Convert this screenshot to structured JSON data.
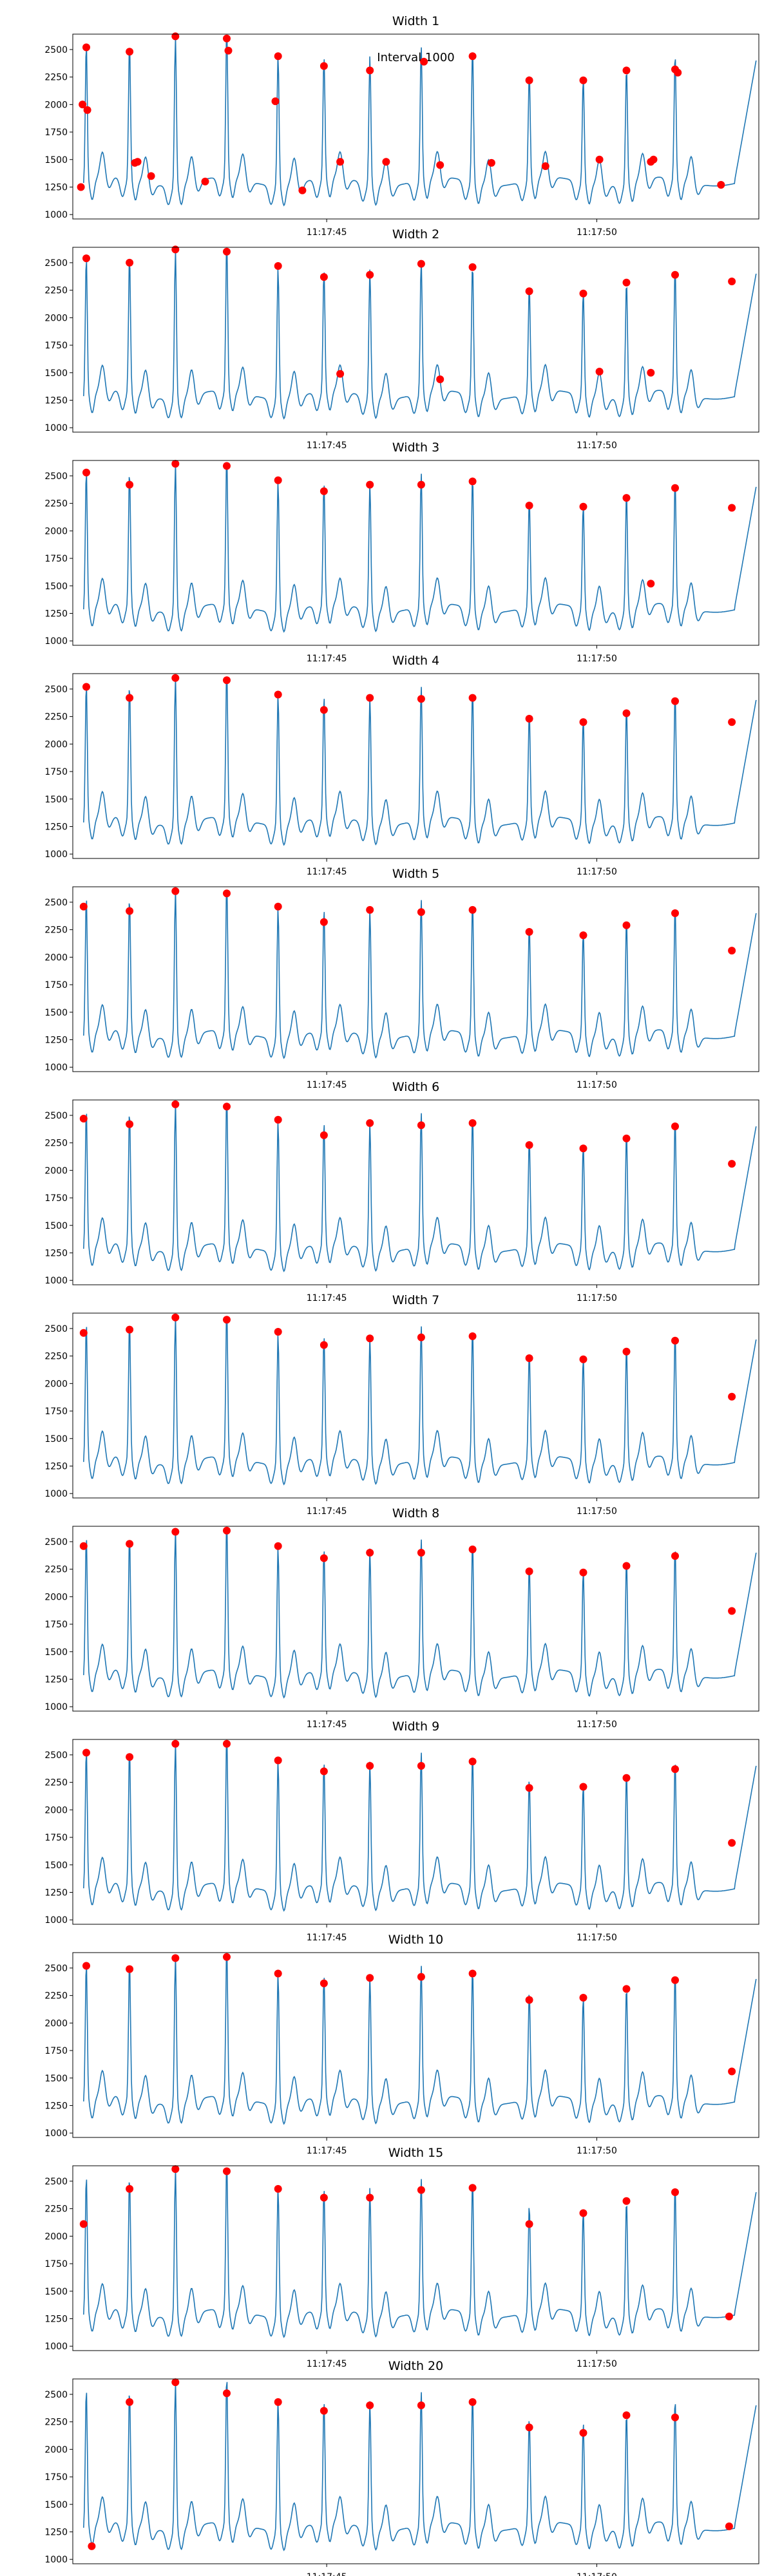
{
  "figure": {
    "annotation": "Interval 1000",
    "x_tick_labels": [
      "11:17:45",
      "11:17:50"
    ],
    "y_tick_labels": [
      "1000",
      "1250",
      "1500",
      "1750",
      "2000",
      "2250",
      "2500"
    ],
    "signal_color": "#1f77b4",
    "peak_color": "#ff0000",
    "axes_color": "#000000",
    "background": "#ffffff"
  },
  "chart_data": [
    {
      "type": "line",
      "title": "Width 1",
      "annotation": "Interval 1000",
      "xlabel": "",
      "ylabel": "",
      "x_unit": "seconds after 11:17:40",
      "xlim": [
        40.3,
        53.0
      ],
      "ylim": [
        960,
        2640
      ],
      "grid": false,
      "peaks": [
        [
          40.45,
          1250
        ],
        [
          40.48,
          2000
        ],
        [
          40.55,
          2520
        ],
        [
          40.57,
          1950
        ],
        [
          41.35,
          2480
        ],
        [
          41.45,
          1470
        ],
        [
          41.5,
          1480
        ],
        [
          41.75,
          1350
        ],
        [
          42.2,
          2620
        ],
        [
          42.75,
          1300
        ],
        [
          43.15,
          2600
        ],
        [
          43.18,
          2490
        ],
        [
          44.05,
          2030
        ],
        [
          44.1,
          2440
        ],
        [
          44.55,
          1220
        ],
        [
          44.95,
          2350
        ],
        [
          45.25,
          1480
        ],
        [
          45.8,
          2310
        ],
        [
          46.1,
          1480
        ],
        [
          46.8,
          2390
        ],
        [
          47.1,
          1450
        ],
        [
          47.7,
          2440
        ],
        [
          48.05,
          1470
        ],
        [
          48.75,
          2220
        ],
        [
          49.05,
          1440
        ],
        [
          49.75,
          2220
        ],
        [
          50.05,
          1500
        ],
        [
          50.55,
          2310
        ],
        [
          51.0,
          1480
        ],
        [
          51.05,
          1500
        ],
        [
          51.45,
          2320
        ],
        [
          51.5,
          2290
        ],
        [
          52.3,
          1270
        ]
      ]
    },
    {
      "type": "line",
      "title": "Width 2",
      "xlabel": "",
      "ylabel": "",
      "x_unit": "seconds after 11:17:40",
      "xlim": [
        40.3,
        53.0
      ],
      "ylim": [
        960,
        2640
      ],
      "grid": false,
      "peaks": [
        [
          40.55,
          2540
        ],
        [
          41.35,
          2500
        ],
        [
          42.2,
          2620
        ],
        [
          43.15,
          2600
        ],
        [
          44.1,
          2470
        ],
        [
          44.95,
          2370
        ],
        [
          45.25,
          1490
        ],
        [
          45.8,
          2390
        ],
        [
          46.75,
          2490
        ],
        [
          47.1,
          1440
        ],
        [
          47.7,
          2460
        ],
        [
          48.75,
          2240
        ],
        [
          49.75,
          2220
        ],
        [
          50.05,
          1510
        ],
        [
          50.55,
          2320
        ],
        [
          51.0,
          1500
        ],
        [
          51.45,
          2390
        ],
        [
          52.5,
          2330
        ]
      ]
    },
    {
      "type": "line",
      "title": "Width 3",
      "xlabel": "",
      "ylabel": "",
      "x_unit": "seconds after 11:17:40",
      "xlim": [
        40.3,
        53.0
      ],
      "ylim": [
        960,
        2640
      ],
      "grid": false,
      "peaks": [
        [
          40.55,
          2530
        ],
        [
          41.35,
          2420
        ],
        [
          42.2,
          2610
        ],
        [
          43.15,
          2590
        ],
        [
          44.1,
          2460
        ],
        [
          44.95,
          2360
        ],
        [
          45.8,
          2420
        ],
        [
          46.75,
          2420
        ],
        [
          47.7,
          2450
        ],
        [
          48.75,
          2230
        ],
        [
          49.75,
          2220
        ],
        [
          50.55,
          2300
        ],
        [
          51.0,
          1520
        ],
        [
          51.45,
          2390
        ],
        [
          52.5,
          2210
        ]
      ]
    },
    {
      "type": "line",
      "title": "Width 4",
      "xlabel": "",
      "ylabel": "",
      "x_unit": "seconds after 11:17:40",
      "xlim": [
        40.3,
        53.0
      ],
      "ylim": [
        960,
        2640
      ],
      "grid": false,
      "peaks": [
        [
          40.55,
          2520
        ],
        [
          41.35,
          2420
        ],
        [
          42.2,
          2600
        ],
        [
          43.15,
          2580
        ],
        [
          44.1,
          2450
        ],
        [
          44.95,
          2310
        ],
        [
          45.8,
          2420
        ],
        [
          46.75,
          2410
        ],
        [
          47.7,
          2420
        ],
        [
          48.75,
          2230
        ],
        [
          49.75,
          2200
        ],
        [
          50.55,
          2280
        ],
        [
          51.45,
          2390
        ],
        [
          52.5,
          2200
        ]
      ]
    },
    {
      "type": "line",
      "title": "Width 5",
      "xlabel": "",
      "ylabel": "",
      "x_unit": "seconds after 11:17:40",
      "xlim": [
        40.3,
        53.0
      ],
      "ylim": [
        960,
        2640
      ],
      "grid": false,
      "peaks": [
        [
          40.5,
          2460
        ],
        [
          41.35,
          2420
        ],
        [
          42.2,
          2600
        ],
        [
          43.15,
          2580
        ],
        [
          44.1,
          2460
        ],
        [
          44.95,
          2320
        ],
        [
          45.8,
          2430
        ],
        [
          46.75,
          2410
        ],
        [
          47.7,
          2430
        ],
        [
          48.75,
          2230
        ],
        [
          49.75,
          2200
        ],
        [
          50.55,
          2290
        ],
        [
          51.45,
          2400
        ],
        [
          52.5,
          2060
        ]
      ]
    },
    {
      "type": "line",
      "title": "Width 6",
      "xlabel": "",
      "ylabel": "",
      "x_unit": "seconds after 11:17:40",
      "xlim": [
        40.3,
        53.0
      ],
      "ylim": [
        960,
        2640
      ],
      "grid": false,
      "peaks": [
        [
          40.5,
          2470
        ],
        [
          41.35,
          2420
        ],
        [
          42.2,
          2600
        ],
        [
          43.15,
          2580
        ],
        [
          44.1,
          2460
        ],
        [
          44.95,
          2320
        ],
        [
          45.8,
          2430
        ],
        [
          46.75,
          2410
        ],
        [
          47.7,
          2430
        ],
        [
          48.75,
          2230
        ],
        [
          49.75,
          2200
        ],
        [
          50.55,
          2290
        ],
        [
          51.45,
          2400
        ],
        [
          52.5,
          2060
        ]
      ]
    },
    {
      "type": "line",
      "title": "Width 7",
      "xlabel": "",
      "ylabel": "",
      "x_unit": "seconds after 11:17:40",
      "xlim": [
        40.3,
        53.0
      ],
      "ylim": [
        960,
        2640
      ],
      "grid": false,
      "peaks": [
        [
          40.5,
          2460
        ],
        [
          41.35,
          2490
        ],
        [
          42.2,
          2600
        ],
        [
          43.15,
          2580
        ],
        [
          44.1,
          2470
        ],
        [
          44.95,
          2350
        ],
        [
          45.8,
          2410
        ],
        [
          46.75,
          2420
        ],
        [
          47.7,
          2430
        ],
        [
          48.75,
          2230
        ],
        [
          49.75,
          2220
        ],
        [
          50.55,
          2290
        ],
        [
          51.45,
          2390
        ],
        [
          52.5,
          1880
        ]
      ]
    },
    {
      "type": "line",
      "title": "Width 8",
      "xlabel": "",
      "ylabel": "",
      "x_unit": "seconds after 11:17:40",
      "xlim": [
        40.3,
        53.0
      ],
      "ylim": [
        960,
        2640
      ],
      "grid": false,
      "peaks": [
        [
          40.5,
          2460
        ],
        [
          41.35,
          2480
        ],
        [
          42.2,
          2590
        ],
        [
          43.15,
          2600
        ],
        [
          44.1,
          2460
        ],
        [
          44.95,
          2350
        ],
        [
          45.8,
          2400
        ],
        [
          46.75,
          2400
        ],
        [
          47.7,
          2430
        ],
        [
          48.75,
          2230
        ],
        [
          49.75,
          2220
        ],
        [
          50.55,
          2280
        ],
        [
          51.45,
          2370
        ],
        [
          52.5,
          1870
        ]
      ]
    },
    {
      "type": "line",
      "title": "Width 9",
      "xlabel": "",
      "ylabel": "",
      "x_unit": "seconds after 11:17:40",
      "xlim": [
        40.3,
        53.0
      ],
      "ylim": [
        960,
        2640
      ],
      "grid": false,
      "peaks": [
        [
          40.55,
          2520
        ],
        [
          41.35,
          2480
        ],
        [
          42.2,
          2600
        ],
        [
          43.15,
          2600
        ],
        [
          44.1,
          2450
        ],
        [
          44.95,
          2350
        ],
        [
          45.8,
          2400
        ],
        [
          46.75,
          2400
        ],
        [
          47.7,
          2440
        ],
        [
          48.75,
          2200
        ],
        [
          49.75,
          2210
        ],
        [
          50.55,
          2290
        ],
        [
          51.45,
          2370
        ],
        [
          52.5,
          1700
        ]
      ]
    },
    {
      "type": "line",
      "title": "Width 10",
      "xlabel": "",
      "ylabel": "",
      "x_unit": "seconds after 11:17:40",
      "xlim": [
        40.3,
        53.0
      ],
      "ylim": [
        960,
        2640
      ],
      "grid": false,
      "peaks": [
        [
          40.55,
          2520
        ],
        [
          41.35,
          2490
        ],
        [
          42.2,
          2590
        ],
        [
          43.15,
          2600
        ],
        [
          44.1,
          2450
        ],
        [
          44.95,
          2360
        ],
        [
          45.8,
          2410
        ],
        [
          46.75,
          2420
        ],
        [
          47.7,
          2450
        ],
        [
          48.75,
          2210
        ],
        [
          49.75,
          2230
        ],
        [
          50.55,
          2310
        ],
        [
          51.45,
          2390
        ],
        [
          52.5,
          1560
        ]
      ]
    },
    {
      "type": "line",
      "title": "Width 15",
      "xlabel": "",
      "ylabel": "",
      "x_unit": "seconds after 11:17:40",
      "xlim": [
        40.3,
        53.0
      ],
      "ylim": [
        960,
        2640
      ],
      "grid": false,
      "peaks": [
        [
          40.5,
          2110
        ],
        [
          41.35,
          2430
        ],
        [
          42.2,
          2610
        ],
        [
          43.15,
          2590
        ],
        [
          44.1,
          2430
        ],
        [
          44.95,
          2350
        ],
        [
          45.8,
          2350
        ],
        [
          46.75,
          2420
        ],
        [
          47.7,
          2440
        ],
        [
          48.75,
          2110
        ],
        [
          49.75,
          2210
        ],
        [
          50.55,
          2320
        ],
        [
          51.45,
          2400
        ],
        [
          52.45,
          1270
        ]
      ]
    },
    {
      "type": "line",
      "title": "Width 20",
      "xlabel": "",
      "ylabel": "",
      "x_unit": "seconds after 11:17:40",
      "xlim": [
        40.3,
        53.0
      ],
      "ylim": [
        960,
        2640
      ],
      "grid": false,
      "peaks": [
        [
          40.65,
          1120
        ],
        [
          41.35,
          2430
        ],
        [
          42.2,
          2610
        ],
        [
          43.15,
          2510
        ],
        [
          44.1,
          2430
        ],
        [
          44.95,
          2350
        ],
        [
          45.8,
          2400
        ],
        [
          46.75,
          2400
        ],
        [
          47.7,
          2430
        ],
        [
          48.75,
          2200
        ],
        [
          49.75,
          2150
        ],
        [
          50.55,
          2310
        ],
        [
          51.45,
          2290
        ],
        [
          52.45,
          1300
        ]
      ]
    }
  ]
}
